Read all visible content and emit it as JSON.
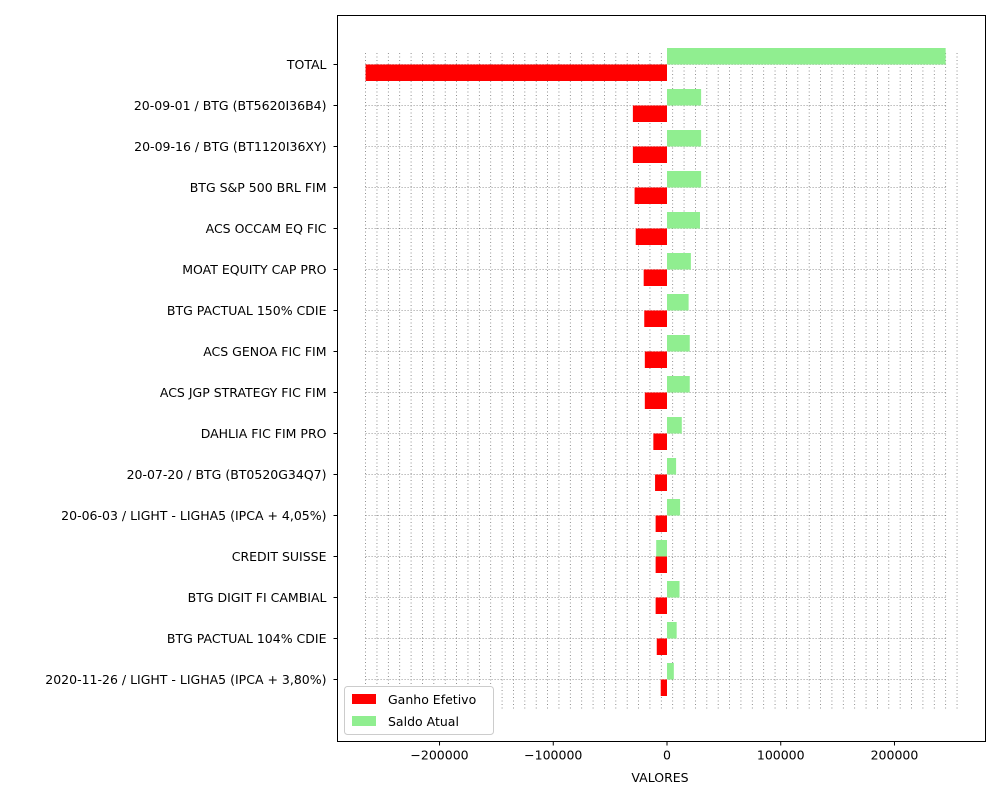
{
  "chart_data": {
    "type": "bar",
    "orientation": "horizontal",
    "categories": [
      "TOTAL",
      "20-09-01 / BTG (BT5620I36B4)",
      "20-09-16 / BTG (BT1120I36XY)",
      "BTG S&P 500 BRL FIM",
      "ACS OCCAM EQ FIC",
      "MOAT EQUITY CAP PRO",
      "BTG PACTUAL 150% CDIE",
      "ACS GENOA FIC FIM",
      "ACS JGP STRATEGY FIC FIM",
      "DAHLIA FIC FIM PRO",
      "20-07-20 / BTG (BT0520G34Q7)",
      "20-06-03 / LIGHT - LIGHA5 (IPCA + 4,05%)",
      "CREDIT SUISSE",
      "BTG DIGIT FI CAMBIAL",
      "BTG PACTUAL 104% CDIE",
      "2020-11-26 / LIGHT - LIGHA5 (IPCA + 3,80%)"
    ],
    "series": [
      {
        "name": "Ganho Efetivo",
        "color": "#ff0000",
        "values": [
          -265000,
          -30000,
          -30000,
          -28500,
          -27500,
          -20500,
          -20000,
          -19500,
          -19500,
          -12000,
          -10500,
          -10000,
          -10000,
          -10000,
          -9000,
          -5500
        ]
      },
      {
        "name": "Saldo Atual",
        "color": "#90ee90",
        "values": [
          245000,
          30000,
          30000,
          30000,
          29000,
          21000,
          19000,
          20000,
          20000,
          13000,
          8000,
          11500,
          -9500,
          11000,
          8500,
          6000
        ]
      }
    ],
    "xlabel": "VALORES",
    "ylabel": "",
    "title": "",
    "xticks": [
      -200000,
      -100000,
      0,
      100000,
      200000
    ],
    "xtick_labels": [
      "−200000",
      "−100000",
      "0",
      "100000",
      "200000"
    ],
    "xlim": [
      -290000,
      280000
    ],
    "grid": "vertical dotted",
    "legend_position": "lower-left"
  }
}
